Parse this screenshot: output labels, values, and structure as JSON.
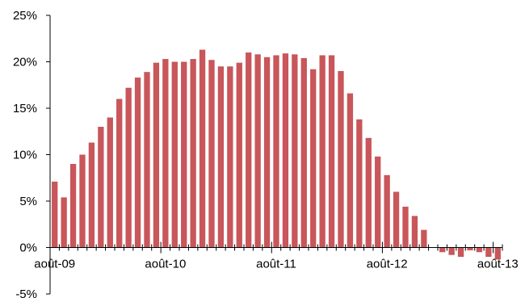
{
  "chart_data": {
    "type": "bar",
    "categories": [
      "août-09",
      "sept-09",
      "oct-09",
      "nov-09",
      "déc-09",
      "janv-10",
      "févr-10",
      "mars-10",
      "avr-10",
      "mai-10",
      "juin-10",
      "juil-10",
      "août-10",
      "sept-10",
      "oct-10",
      "nov-10",
      "déc-10",
      "janv-11",
      "févr-11",
      "mars-11",
      "avr-11",
      "mai-11",
      "juin-11",
      "juil-11",
      "août-11",
      "sept-11",
      "oct-11",
      "nov-11",
      "déc-11",
      "janv-12",
      "févr-12",
      "mars-12",
      "avr-12",
      "mai-12",
      "juin-12",
      "juil-12",
      "août-12",
      "sept-12",
      "oct-12",
      "nov-12",
      "déc-12",
      "janv-13",
      "févr-13",
      "mars-13",
      "avr-13",
      "mai-13",
      "juin-13",
      "juil-13",
      "août-13"
    ],
    "series": [
      {
        "values": [
          7.1,
          5.4,
          9.0,
          10.0,
          11.3,
          13.0,
          14.0,
          16.0,
          17.2,
          18.3,
          18.9,
          19.9,
          20.3,
          20.0,
          20.0,
          20.3,
          21.3,
          20.2,
          19.5,
          19.5,
          19.9,
          21.0,
          20.8,
          20.5,
          20.7,
          20.9,
          20.8,
          20.4,
          19.2,
          20.7,
          20.7,
          19.0,
          16.6,
          13.8,
          11.8,
          9.8,
          7.8,
          6.0,
          4.4,
          3.4,
          1.9,
          0.0,
          -0.5,
          -0.8,
          -1.0,
          -0.3,
          -0.5,
          -1.0,
          -1.3
        ]
      }
    ],
    "color": "#c8565a",
    "ylim": [
      -5,
      25
    ],
    "y_ticks": [
      {
        "value": 25,
        "label": "25%"
      },
      {
        "value": 20,
        "label": "20%"
      },
      {
        "value": 15,
        "label": "15%"
      },
      {
        "value": 10,
        "label": "10%"
      },
      {
        "value": 5,
        "label": "5%"
      },
      {
        "value": 0,
        "label": "0%"
      },
      {
        "value": -5,
        "label": "-5%"
      }
    ],
    "x_labels": [
      {
        "index": 0,
        "label": "août-09"
      },
      {
        "index": 12,
        "label": "août-10"
      },
      {
        "index": 24,
        "label": "août-11"
      },
      {
        "index": 36,
        "label": "août-12"
      },
      {
        "index": 48,
        "label": "août-13"
      }
    ],
    "grid": false,
    "legend": "none"
  }
}
